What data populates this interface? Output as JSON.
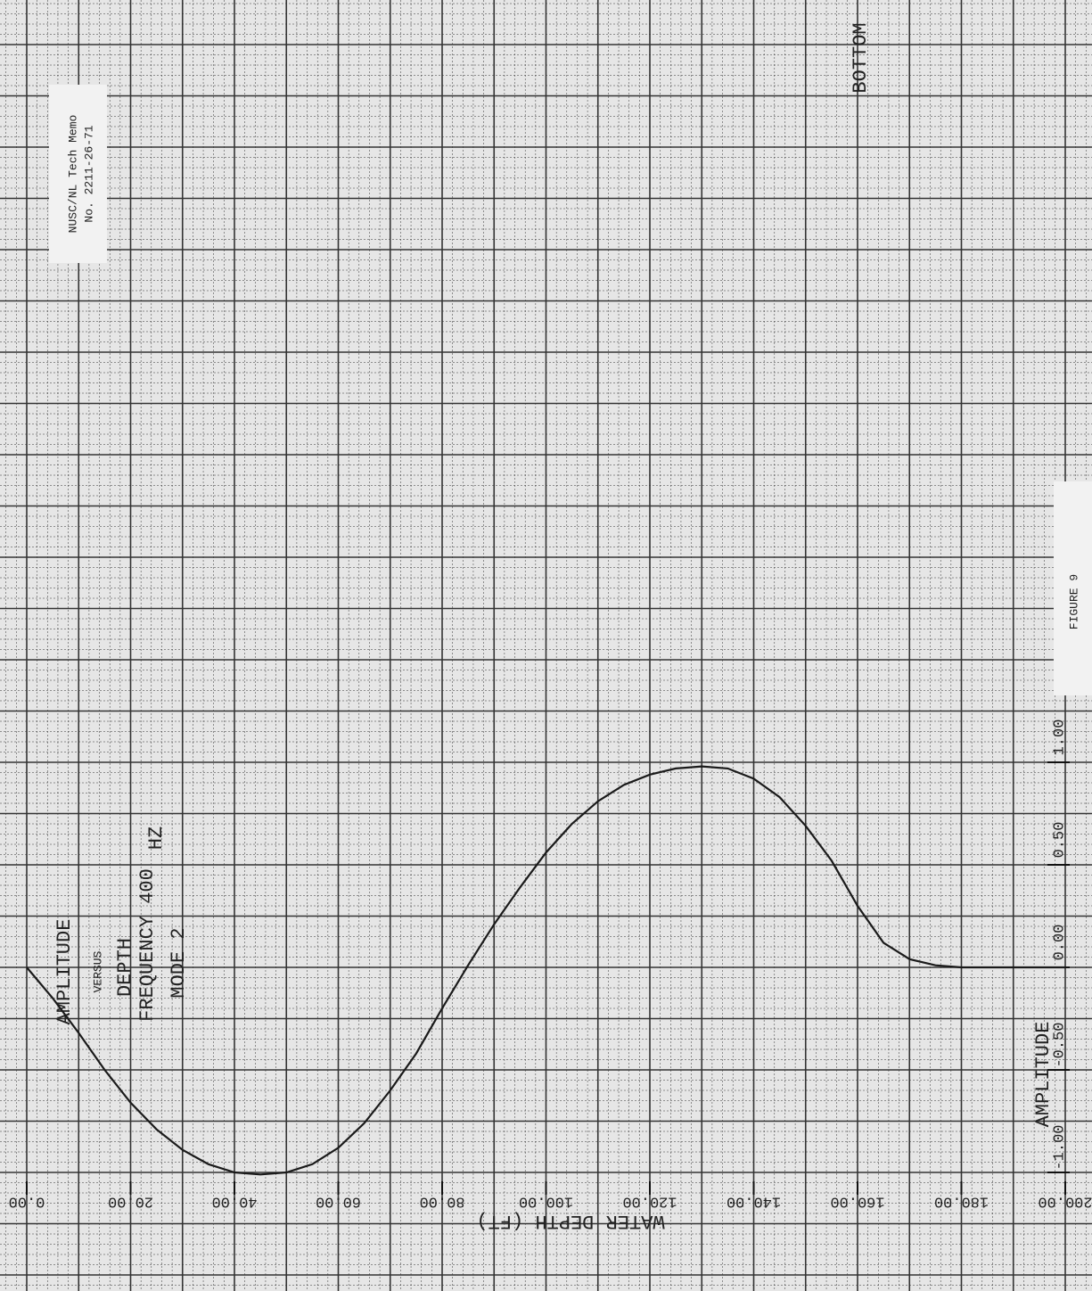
{
  "header": {
    "memo": "NUSC/NL Tech Memo",
    "number": "No. 2211-26-71"
  },
  "figure_label": "FIGURE 9",
  "chart_data": {
    "type": "line",
    "title_lines": [
      "AMPLITUDE",
      "VERSUS",
      "DEPTH",
      "FREQUENCY 400",
      "MODE 2"
    ],
    "unit_label": "HZ",
    "annotation": "BOTTOM",
    "x_label": "WATER DEPTH (FT)",
    "y_label": "AMPLITUDE",
    "x": [
      0,
      5,
      10,
      15,
      20,
      25,
      30,
      35,
      40,
      45,
      50,
      55,
      60,
      65,
      70,
      75,
      80,
      85,
      90,
      95,
      100,
      105,
      110,
      115,
      120,
      125,
      130,
      135,
      140,
      145,
      150,
      155,
      160,
      165,
      170,
      175,
      180,
      190,
      200
    ],
    "series": [
      {
        "color": "#1a1a1a",
        "values": [
          0,
          -0.15,
          -0.32,
          -0.5,
          -0.66,
          -0.79,
          -0.89,
          -0.96,
          -1.0,
          -1.01,
          -1.0,
          -0.96,
          -0.88,
          -0.76,
          -0.6,
          -0.42,
          -0.2,
          0.01,
          0.21,
          0.39,
          0.56,
          0.7,
          0.81,
          0.89,
          0.94,
          0.97,
          0.98,
          0.97,
          0.92,
          0.83,
          0.69,
          0.52,
          0.3,
          0.12,
          0.04,
          0.01,
          0,
          0,
          0
        ]
      }
    ],
    "xlim": [
      0,
      200
    ],
    "xticks": [
      {
        "value": 0,
        "label": "0.00"
      },
      {
        "value": 20,
        "label": "20.00"
      },
      {
        "value": 40,
        "label": "40.00"
      },
      {
        "value": 60,
        "label": "60.00"
      },
      {
        "value": 80,
        "label": "80.00"
      },
      {
        "value": 100,
        "label": "100.00"
      },
      {
        "value": 120,
        "label": "120.00"
      },
      {
        "value": 140,
        "label": "140.00"
      },
      {
        "value": 160,
        "label": "160.00"
      },
      {
        "value": 180,
        "label": "180.00"
      },
      {
        "value": 200,
        "label": "200.00"
      }
    ],
    "ylim": [
      -1,
      1
    ],
    "yticks": [
      {
        "value": -1,
        "label": "-1.00"
      },
      {
        "value": -0.5,
        "label": "-0.50"
      },
      {
        "value": 0,
        "label": "0.00"
      },
      {
        "value": 0.5,
        "label": "0.50"
      },
      {
        "value": 1,
        "label": "1.00"
      }
    ]
  }
}
